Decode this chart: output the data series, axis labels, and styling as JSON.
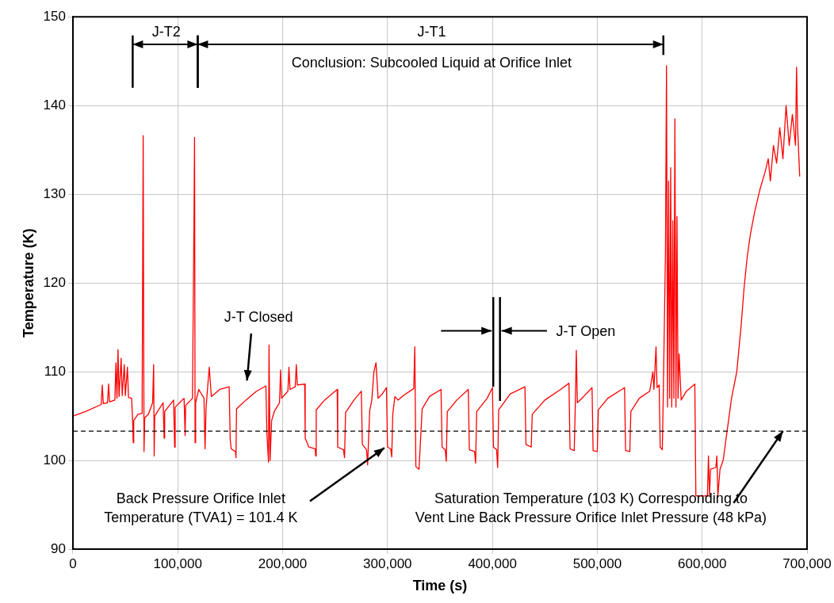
{
  "chart_data": {
    "type": "line",
    "xlabel": "Time (s)",
    "ylabel": "Temperature (K)",
    "xlim": [
      0,
      700000
    ],
    "ylim": [
      90,
      150
    ],
    "xticks": [
      0,
      {
        "value": 100000,
        "label": "100,000"
      },
      {
        "value": 200000,
        "label": "200,000"
      },
      {
        "value": 300000,
        "label": "300,000"
      },
      {
        "value": 400000,
        "label": "400,000"
      },
      {
        "value": 500000,
        "label": "500,000"
      },
      {
        "value": 600000,
        "label": "600,000"
      },
      {
        "value": 700000,
        "label": "700,000"
      }
    ],
    "yticks": [
      90,
      100,
      110,
      120,
      130,
      140,
      150
    ],
    "grid": true,
    "marker": "none",
    "line_style": "solid",
    "ref_lines": [
      {
        "axis": "y",
        "value": 103.3,
        "color": "#000000",
        "line_style": "dashed"
      }
    ],
    "annotations": [
      "J-T2",
      "J-T1",
      "Conclusion: Subcooled Liquid at Orifice Inlet",
      "J-T Closed",
      "J-T Open",
      {
        "text": "Back Pressure Orifice Inlet\nTemperature (TVA1) = 101.4 K",
        "x": 297000,
        "y": 101.4
      },
      {
        "text": "Saturation Temperature (103 K) Corresponding to\nVent Line Back Pressure Orifice Inlet Pressure (48 kPa)",
        "x": 677000,
        "y": 103.3
      }
    ],
    "series": [
      {
        "color": "#ff0000",
        "x": [
          0,
          12000,
          27000,
          28000,
          29000,
          33000,
          34000,
          35000,
          40000,
          41000,
          42000,
          43000,
          44000,
          46000,
          47000,
          49000,
          50000,
          52000,
          53000,
          56000,
          57000,
          57500,
          58000,
          62000,
          66000,
          67000,
          67800,
          68500,
          72000,
          76000,
          77000,
          77500,
          78000,
          86000,
          87000,
          87500,
          96000,
          97000,
          97500,
          106000,
          107000,
          107500,
          114000,
          115500,
          116000,
          116500,
          117000,
          120000,
          125000,
          126000,
          127000,
          130000,
          132000,
          140000,
          149000,
          150000,
          151000,
          155000,
          155500,
          156000,
          165000,
          175000,
          184000,
          185000,
          186500,
          187000,
          188000,
          189500,
          192000,
          197000,
          198000,
          199000,
          205000,
          206000,
          207000,
          212000,
          213000,
          214000,
          221000,
          221500,
          225000,
          231000,
          231500,
          232000,
          240000,
          250000,
          252000,
          252500,
          258000,
          259000,
          260000,
          268000,
          275000,
          276000,
          280000,
          281000,
          283000,
          285000,
          287000,
          289000,
          291000,
          295000,
          299000,
          300000,
          303000,
          304000,
          305000,
          307000,
          310000,
          315000,
          325000,
          326000,
          327000,
          330000,
          333000,
          340000,
          351000,
          352000,
          355000,
          356000,
          357000,
          366000,
          377000,
          378000,
          383000,
          384000,
          385000,
          395000,
          400000,
          401000,
          404000,
          405000,
          406000,
          417000,
          431000,
          432000,
          437000,
          438000,
          450000,
          465000,
          473000,
          474000,
          478000,
          479000,
          480000,
          481000,
          487000,
          495000,
          496000,
          500000,
          501000,
          510000,
          526000,
          527000,
          531000,
          532000,
          540000,
          550000,
          553000,
          554000,
          556000,
          557000,
          559000,
          560000,
          562000,
          563000,
          565000,
          566000,
          567000,
          568000,
          569000,
          570000,
          571000,
          572000,
          573000,
          574000,
          575000,
          576000,
          577000,
          578000,
          580000,
          585000,
          593000,
          594000,
          605000,
          606000,
          607000,
          608000,
          613000,
          614000,
          615000,
          617000,
          620000,
          624000,
          628000,
          633000,
          637000,
          640000,
          643000,
          646000,
          650000,
          655000,
          660000,
          663000,
          665000,
          668000,
          671000,
          674000,
          677000,
          680000,
          683000,
          686000,
          689000,
          690000,
          691000,
          693000
        ],
        "values": [
          105,
          105.5,
          106.3,
          108.5,
          106.4,
          106.5,
          108.6,
          106.6,
          106.8,
          111,
          107,
          112.5,
          107.2,
          111.5,
          107.3,
          110.8,
          107.3,
          110.5,
          107.1,
          107,
          104.3,
          102,
          104.5,
          105.2,
          105.3,
          136.6,
          101,
          104.8,
          105.2,
          106.5,
          110.8,
          100.5,
          105,
          106.5,
          102.5,
          105.5,
          106.8,
          101.5,
          106,
          107,
          102.8,
          106.2,
          107,
          128,
          136.4,
          102,
          106.5,
          108,
          107,
          101.3,
          106,
          110.5,
          107.2,
          108,
          108.3,
          102.3,
          101.3,
          101,
          100.3,
          105.8,
          106.8,
          107.8,
          108.4,
          103,
          99.8,
          113,
          100,
          104.5,
          105.5,
          106.5,
          110.2,
          107,
          107.8,
          110.5,
          108,
          108.3,
          110.8,
          108.5,
          108.6,
          102.5,
          101.5,
          101.3,
          100.5,
          105.7,
          106.8,
          107.8,
          108,
          101.5,
          101.2,
          100.3,
          105.4,
          106.8,
          107.8,
          101.8,
          101.2,
          99.5,
          105.6,
          106.8,
          110,
          111,
          107,
          107.5,
          108.2,
          101.5,
          101.3,
          100.4,
          105.2,
          107.2,
          106.8,
          107.3,
          108.1,
          112.8,
          99.3,
          99,
          105.8,
          107.2,
          108,
          101.5,
          101.2,
          99.9,
          105.5,
          106.8,
          108,
          101.2,
          101,
          99.7,
          105.5,
          107,
          108.2,
          101.5,
          101.2,
          99.2,
          105.7,
          107.5,
          108.3,
          101.8,
          101.5,
          105.2,
          106.8,
          108,
          108.7,
          101.3,
          101.1,
          106,
          112.4,
          106.5,
          107.2,
          108.2,
          101.1,
          101,
          105.7,
          107,
          108.2,
          101.1,
          101,
          105.5,
          107,
          107.8,
          110,
          108,
          112.8,
          108.2,
          108.5,
          101.5,
          101.2,
          108,
          123.5,
          144.5,
          106,
          131.5,
          107,
          133,
          106,
          127,
          107,
          138.5,
          106,
          127.5,
          107,
          112,
          106.8,
          107.8,
          108.6,
          96,
          96,
          100.5,
          96,
          99,
          99.2,
          100.5,
          96,
          99,
          100,
          103.5,
          107,
          110,
          115,
          119.5,
          123,
          125.5,
          128,
          130.5,
          132.5,
          134,
          131.5,
          135.5,
          133.5,
          137.5,
          134,
          140,
          135.5,
          139,
          135.5,
          144.3,
          137.5,
          132
        ]
      }
    ]
  }
}
